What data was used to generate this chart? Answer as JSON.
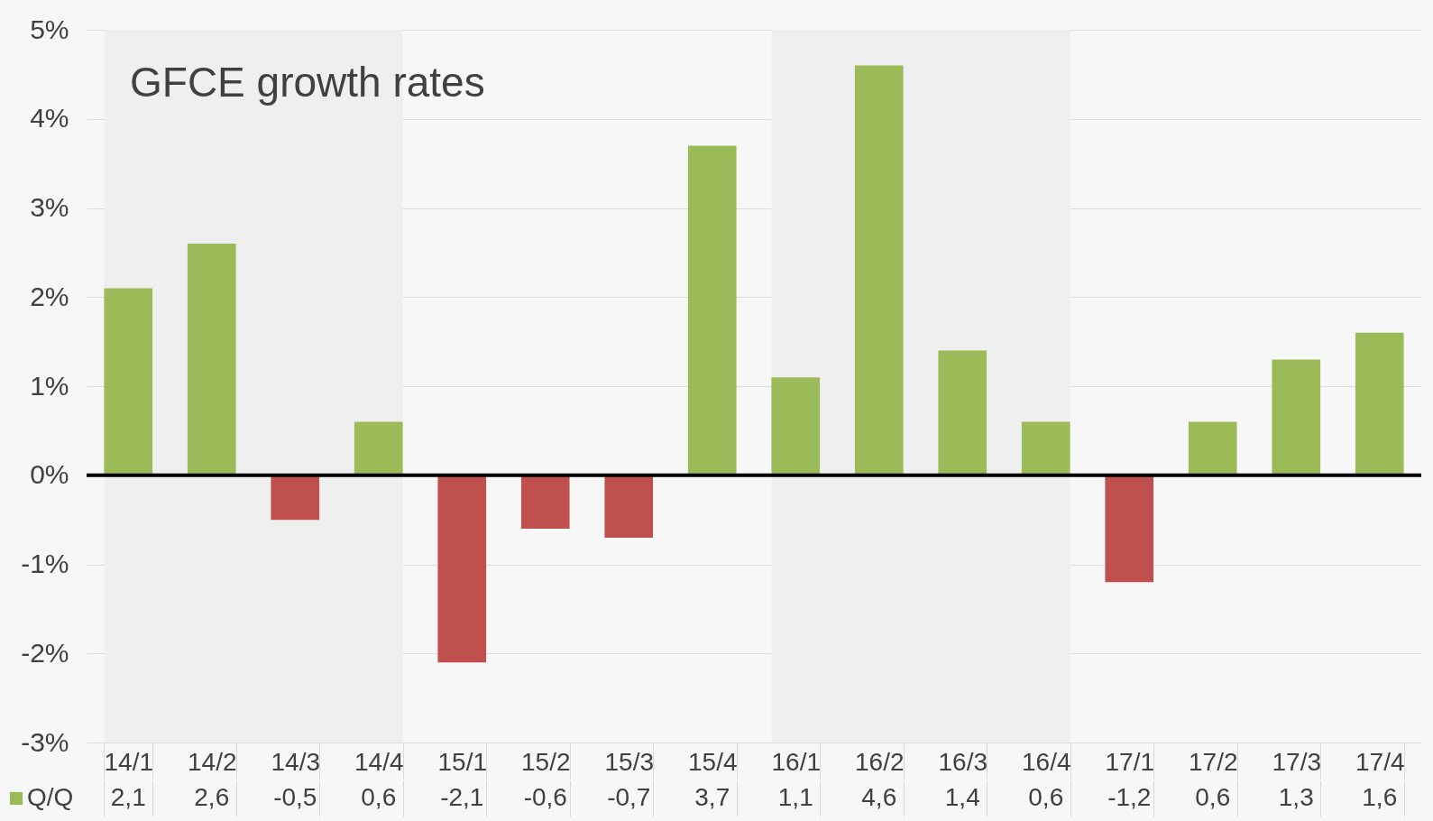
{
  "chart_data": {
    "type": "bar",
    "title": "GFCE growth rates",
    "categories": [
      "14/1",
      "14/2",
      "14/3",
      "14/4",
      "15/1",
      "15/2",
      "15/3",
      "15/4",
      "16/1",
      "16/2",
      "16/3",
      "16/4",
      "17/1",
      "17/2",
      "17/3",
      "17/4"
    ],
    "series": [
      {
        "name": "Q/Q",
        "color": "#9bbb59",
        "values": [
          2.1,
          2.6,
          -0.5,
          0.6,
          -2.1,
          -0.6,
          -0.7,
          3.7,
          1.1,
          4.6,
          1.4,
          0.6,
          -1.2,
          0.6,
          1.3,
          1.6
        ],
        "colors": [
          "#9bbb59",
          "#9bbb59",
          "#c0504d",
          "#9bbb59",
          "#c0504d",
          "#c0504d",
          "#c0504d",
          "#9bbb59",
          "#9bbb59",
          "#9bbb59",
          "#9bbb59",
          "#9bbb59",
          "#c0504d",
          "#9bbb59",
          "#9bbb59",
          "#9bbb59"
        ],
        "value_labels": [
          "2,1",
          "2,6",
          "-0,5",
          "0,6",
          "-2,1",
          "-0,6",
          "-0,7",
          "3,7",
          "1,1",
          "4,6",
          "1,4",
          "0,6",
          "-1,2",
          "0,6",
          "1,3",
          "1,6"
        ]
      }
    ],
    "ylim": [
      -3,
      5
    ],
    "yticks": [
      {
        "value": -3,
        "label": "-3%"
      },
      {
        "value": -2,
        "label": "-2%"
      },
      {
        "value": -1,
        "label": "-1%"
      },
      {
        "value": 0,
        "label": "0%"
      },
      {
        "value": 1,
        "label": "1%"
      },
      {
        "value": 2,
        "label": "2%"
      },
      {
        "value": 3,
        "label": "3%"
      },
      {
        "value": 4,
        "label": "4%"
      },
      {
        "value": 5,
        "label": "5%"
      }
    ],
    "grid": "y",
    "legend": "bottom left",
    "bands": [
      {
        "axis": "x",
        "from": "14/1",
        "to": "14/4",
        "color": "#efefef"
      },
      {
        "axis": "x",
        "from": "16/1",
        "to": "16/4",
        "color": "#efefef"
      }
    ],
    "ref_lines": [
      {
        "axis": "y",
        "value": 0,
        "color": "#000000"
      }
    ]
  }
}
